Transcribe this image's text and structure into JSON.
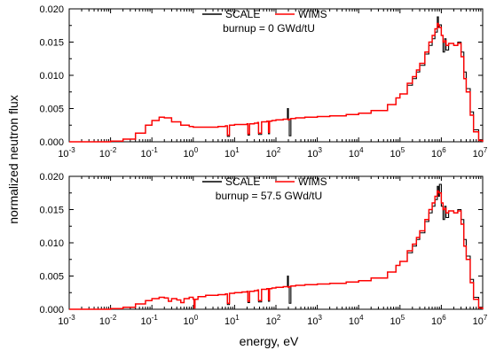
{
  "chart_data": [
    {
      "type": "line",
      "title": "",
      "annotation": "burnup = 0 GWd/tU",
      "xlabel": "energy, eV",
      "ylabel": "normalized neutron flux",
      "xscale": "log",
      "xlim": [
        0.001,
        10000000
      ],
      "ylim": [
        0.0,
        0.02
      ],
      "grid": false,
      "legend": "top-center",
      "x_tick_labels": [
        {
          "base": "10",
          "exp": "-3"
        },
        {
          "base": "10",
          "exp": "-2"
        },
        {
          "base": "10",
          "exp": "-1"
        },
        {
          "base": "10",
          "exp": "0"
        },
        {
          "base": "10",
          "exp": "1"
        },
        {
          "base": "10",
          "exp": "2"
        },
        {
          "base": "10",
          "exp": "3"
        },
        {
          "base": "10",
          "exp": "4"
        },
        {
          "base": "10",
          "exp": "5"
        },
        {
          "base": "10",
          "exp": "6"
        },
        {
          "base": "10",
          "exp": "7"
        }
      ],
      "y_tick_labels": [
        "0.000",
        "0.005",
        "0.010",
        "0.015",
        "0.020"
      ],
      "series": [
        {
          "name": "SCALE",
          "color": "#000000",
          "x": [
            0.001,
            0.003,
            0.006,
            0.01,
            0.02,
            0.04,
            0.07,
            0.1,
            0.15,
            0.2,
            0.3,
            0.5,
            0.8,
            1,
            2,
            4,
            6,
            6.7,
            7.5,
            10,
            15,
            20,
            21,
            23,
            30,
            36,
            38,
            45,
            60,
            66,
            70,
            80,
            100,
            120,
            150,
            180,
            190,
            200,
            210,
            230,
            300,
            400,
            500,
            600,
            800,
            1000,
            2000,
            5000,
            10000,
            20000,
            50000,
            80000,
            100000,
            150000,
            200000,
            250000,
            300000,
            400000,
            500000,
            600000,
            700000,
            800000,
            850000,
            900000,
            1000000,
            1100000,
            1200000,
            1300000,
            1500000,
            2000000,
            2500000,
            3000000,
            3500000,
            4000000,
            5000000,
            6000000,
            8000000,
            10000000
          ],
          "y": [
            0.0,
            0.0,
            0.0,
            0.0001,
            0.0004,
            0.0013,
            0.0025,
            0.0032,
            0.0037,
            0.0036,
            0.003,
            0.0025,
            0.0023,
            0.0022,
            0.0022,
            0.0023,
            0.0024,
            0.0008,
            0.0025,
            0.0026,
            0.0026,
            0.0027,
            0.001,
            0.0027,
            0.0028,
            0.0029,
            0.0011,
            0.003,
            0.0031,
            0.0012,
            0.0031,
            0.0032,
            0.0033,
            0.0033,
            0.0034,
            0.0034,
            0.005,
            0.0033,
            0.0009,
            0.0035,
            0.0036,
            0.0036,
            0.0037,
            0.0037,
            0.0037,
            0.0038,
            0.0039,
            0.0041,
            0.0043,
            0.0047,
            0.0056,
            0.0066,
            0.0072,
            0.0085,
            0.0095,
            0.0105,
            0.0115,
            0.0132,
            0.0145,
            0.0155,
            0.0165,
            0.0188,
            0.0172,
            0.0176,
            0.016,
            0.0135,
            0.0155,
            0.0138,
            0.0148,
            0.0145,
            0.015,
            0.0135,
            0.0105,
            0.008,
            0.0045,
            0.0018,
            0.0003,
            0.0
          ]
        },
        {
          "name": "WIMS",
          "color": "#ff0000",
          "x": [
            0.001,
            0.003,
            0.006,
            0.01,
            0.02,
            0.04,
            0.07,
            0.1,
            0.15,
            0.2,
            0.3,
            0.5,
            0.8,
            1,
            2,
            4,
            6,
            6.7,
            7.5,
            10,
            15,
            20,
            21,
            23,
            30,
            36,
            38,
            45,
            60,
            66,
            70,
            80,
            100,
            120,
            150,
            180,
            190,
            200,
            210,
            230,
            300,
            400,
            500,
            600,
            800,
            1000,
            2000,
            5000,
            10000,
            20000,
            50000,
            80000,
            100000,
            150000,
            200000,
            250000,
            300000,
            400000,
            500000,
            600000,
            700000,
            800000,
            850000,
            900000,
            1000000,
            1100000,
            1200000,
            1300000,
            1500000,
            2000000,
            2500000,
            3000000,
            3500000,
            4000000,
            5000000,
            6000000,
            8000000,
            10000000
          ],
          "y": [
            0.0,
            0.0,
            0.0,
            0.0001,
            0.0004,
            0.0013,
            0.0025,
            0.0032,
            0.0037,
            0.0036,
            0.003,
            0.0025,
            0.0023,
            0.0022,
            0.0022,
            0.0023,
            0.0024,
            0.001,
            0.0025,
            0.0026,
            0.0026,
            0.0027,
            0.0012,
            0.0027,
            0.0028,
            0.0029,
            0.0013,
            0.003,
            0.0031,
            0.0014,
            0.0031,
            0.0032,
            0.0033,
            0.0033,
            0.0034,
            0.0034,
            0.0034,
            0.0033,
            0.0034,
            0.0035,
            0.0036,
            0.0036,
            0.0037,
            0.0037,
            0.0037,
            0.0038,
            0.0039,
            0.0041,
            0.0043,
            0.0047,
            0.0056,
            0.0066,
            0.0072,
            0.0088,
            0.0098,
            0.0108,
            0.0118,
            0.0135,
            0.015,
            0.016,
            0.017,
            0.0178,
            0.0175,
            0.0172,
            0.016,
            0.015,
            0.0152,
            0.0145,
            0.0148,
            0.0145,
            0.0148,
            0.0128,
            0.0095,
            0.0075,
            0.004,
            0.0015,
            0.0002,
            0.0
          ]
        }
      ]
    },
    {
      "type": "line",
      "title": "",
      "annotation": "burnup = 57.5 GWd/tU",
      "xlabel": "energy, eV",
      "ylabel": "normalized neutron flux",
      "xscale": "log",
      "xlim": [
        0.001,
        10000000
      ],
      "ylim": [
        0.0,
        0.02
      ],
      "grid": false,
      "legend": "top-center",
      "x_tick_labels": [
        {
          "base": "10",
          "exp": "-3"
        },
        {
          "base": "10",
          "exp": "-2"
        },
        {
          "base": "10",
          "exp": "-1"
        },
        {
          "base": "10",
          "exp": "0"
        },
        {
          "base": "10",
          "exp": "1"
        },
        {
          "base": "10",
          "exp": "2"
        },
        {
          "base": "10",
          "exp": "3"
        },
        {
          "base": "10",
          "exp": "4"
        },
        {
          "base": "10",
          "exp": "5"
        },
        {
          "base": "10",
          "exp": "6"
        },
        {
          "base": "10",
          "exp": "7"
        }
      ],
      "y_tick_labels": [
        "0.000",
        "0.005",
        "0.010",
        "0.015",
        "0.020"
      ],
      "series": [
        {
          "name": "SCALE",
          "color": "#000000",
          "x": [
            0.001,
            0.003,
            0.006,
            0.01,
            0.02,
            0.04,
            0.07,
            0.1,
            0.15,
            0.2,
            0.25,
            0.3,
            0.4,
            0.5,
            0.6,
            0.8,
            1,
            1.05,
            1.1,
            1.3,
            2,
            4,
            6,
            6.7,
            7.5,
            10,
            15,
            20,
            21,
            23,
            30,
            36,
            38,
            45,
            60,
            66,
            70,
            80,
            100,
            120,
            150,
            180,
            190,
            200,
            210,
            230,
            300,
            400,
            500,
            600,
            800,
            1000,
            2000,
            5000,
            10000,
            20000,
            50000,
            80000,
            100000,
            150000,
            200000,
            250000,
            300000,
            400000,
            500000,
            600000,
            700000,
            800000,
            850000,
            900000,
            1000000,
            1100000,
            1200000,
            1300000,
            1500000,
            2000000,
            2500000,
            3000000,
            3500000,
            4000000,
            5000000,
            6000000,
            8000000,
            10000000
          ],
          "y": [
            0.0,
            0.0,
            0.0,
            0.0001,
            0.0003,
            0.0008,
            0.0013,
            0.0016,
            0.0018,
            0.0017,
            0.0012,
            0.0016,
            0.0014,
            0.001,
            0.0016,
            0.0018,
            0.0015,
            0.0002,
            0.0015,
            0.0019,
            0.0021,
            0.0022,
            0.0023,
            0.0007,
            0.0024,
            0.0025,
            0.0026,
            0.0027,
            0.001,
            0.0027,
            0.0028,
            0.0029,
            0.0011,
            0.003,
            0.0031,
            0.0012,
            0.0031,
            0.0032,
            0.0033,
            0.0033,
            0.0034,
            0.0034,
            0.005,
            0.0033,
            0.0009,
            0.0035,
            0.0036,
            0.0036,
            0.0037,
            0.0037,
            0.0037,
            0.0038,
            0.0039,
            0.0041,
            0.0043,
            0.0047,
            0.0056,
            0.0066,
            0.0072,
            0.0085,
            0.0095,
            0.0105,
            0.0115,
            0.0132,
            0.0145,
            0.0155,
            0.0165,
            0.0185,
            0.017,
            0.0188,
            0.0155,
            0.0135,
            0.0155,
            0.0138,
            0.0148,
            0.0145,
            0.015,
            0.0135,
            0.0105,
            0.008,
            0.0045,
            0.0018,
            0.0003,
            0.0
          ]
        },
        {
          "name": "WIMS",
          "color": "#ff0000",
          "x": [
            0.001,
            0.003,
            0.006,
            0.01,
            0.02,
            0.04,
            0.07,
            0.1,
            0.15,
            0.2,
            0.25,
            0.3,
            0.4,
            0.5,
            0.6,
            0.8,
            1,
            1.05,
            1.1,
            1.3,
            2,
            4,
            6,
            6.7,
            7.5,
            10,
            15,
            20,
            21,
            23,
            30,
            36,
            38,
            45,
            60,
            66,
            70,
            80,
            100,
            120,
            150,
            180,
            190,
            200,
            210,
            230,
            300,
            400,
            500,
            600,
            800,
            1000,
            2000,
            5000,
            10000,
            20000,
            50000,
            80000,
            100000,
            150000,
            200000,
            250000,
            300000,
            400000,
            500000,
            600000,
            700000,
            800000,
            850000,
            900000,
            1000000,
            1100000,
            1200000,
            1300000,
            1500000,
            2000000,
            2500000,
            3000000,
            3500000,
            4000000,
            5000000,
            6000000,
            8000000,
            10000000
          ],
          "y": [
            0.0,
            0.0,
            0.0,
            0.0001,
            0.0003,
            0.0008,
            0.0013,
            0.0016,
            0.0018,
            0.0017,
            0.0012,
            0.0016,
            0.0014,
            0.001,
            0.0016,
            0.0018,
            0.0015,
            0.0002,
            0.0015,
            0.0019,
            0.0021,
            0.0022,
            0.0023,
            0.0009,
            0.0024,
            0.0025,
            0.0026,
            0.0027,
            0.0012,
            0.0027,
            0.0028,
            0.0029,
            0.0013,
            0.003,
            0.0031,
            0.0014,
            0.0031,
            0.0032,
            0.0033,
            0.0033,
            0.0034,
            0.0034,
            0.0034,
            0.0033,
            0.0034,
            0.0035,
            0.0036,
            0.0036,
            0.0037,
            0.0037,
            0.0037,
            0.0038,
            0.0039,
            0.0041,
            0.0043,
            0.0047,
            0.0056,
            0.0066,
            0.0072,
            0.0088,
            0.0098,
            0.0108,
            0.0118,
            0.0135,
            0.015,
            0.016,
            0.017,
            0.0178,
            0.0176,
            0.0175,
            0.016,
            0.015,
            0.0152,
            0.0145,
            0.0148,
            0.0145,
            0.0148,
            0.0128,
            0.0095,
            0.0075,
            0.004,
            0.0015,
            0.0002,
            0.0
          ]
        }
      ]
    }
  ],
  "figure": {
    "ylabel": "normalized neutron flux",
    "xlabel": "energy, eV"
  }
}
